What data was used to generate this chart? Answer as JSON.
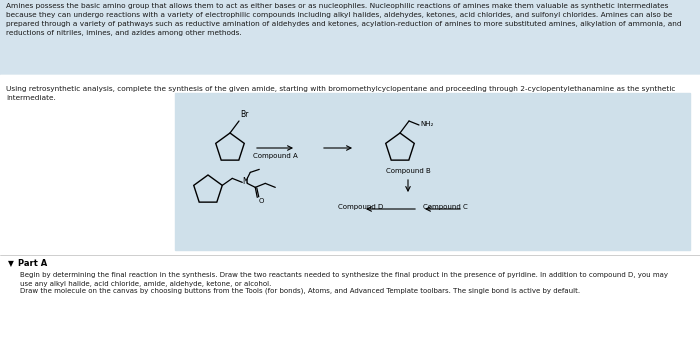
{
  "bg_top": "#d4e3ed",
  "bg_white": "#ffffff",
  "bg_scheme": "#cfe0ea",
  "text_color": "#1a1a1a",
  "paragraph1": "Amines possess the basic amino group that allows them to act as either bases or as nucleophiles. Nucleophilic reactions of amines make them valuable as synthetic intermediates\nbecause they can undergo reactions with a variety of electrophilic compounds including alkyl halides, aldehydes, ketones, acid chlorides, and sulfonyl chlorides. Amines can also be\nprepared through a variety of pathways such as reductive amination of aldehydes and ketones, acylation-reduction of amines to more substituted amines, alkylation of ammonia, and\nreductions of nitriles, imines, and azides among other methods.",
  "paragraph2": "Using retrosynthetic analysis, complete the synthesis of the given amide, starting with bromomethylcyclopentane and proceeding through 2-cyclopentylethanamine as the synthetic\nintermediate.",
  "part_a_label": "Part A",
  "part_a_text1": "Begin by determining the final reaction in the synthesis. Draw the two reactants needed to synthesize the final product in the presence of pyridine. In addition to compound D, you may\nuse any alkyl halide, acid chloride, amide, aldehyde, ketone, or alcohol.",
  "part_a_text2": "Draw the molecule on the canvas by choosing buttons from the Tools (for bonds), Atoms, and Advanced Template toolbars. The single bond is active by default.",
  "compound_a_label": "Compound A",
  "compound_b_label": "Compound B",
  "compound_c_label": "Compound C",
  "compound_d_label": "Compound D"
}
